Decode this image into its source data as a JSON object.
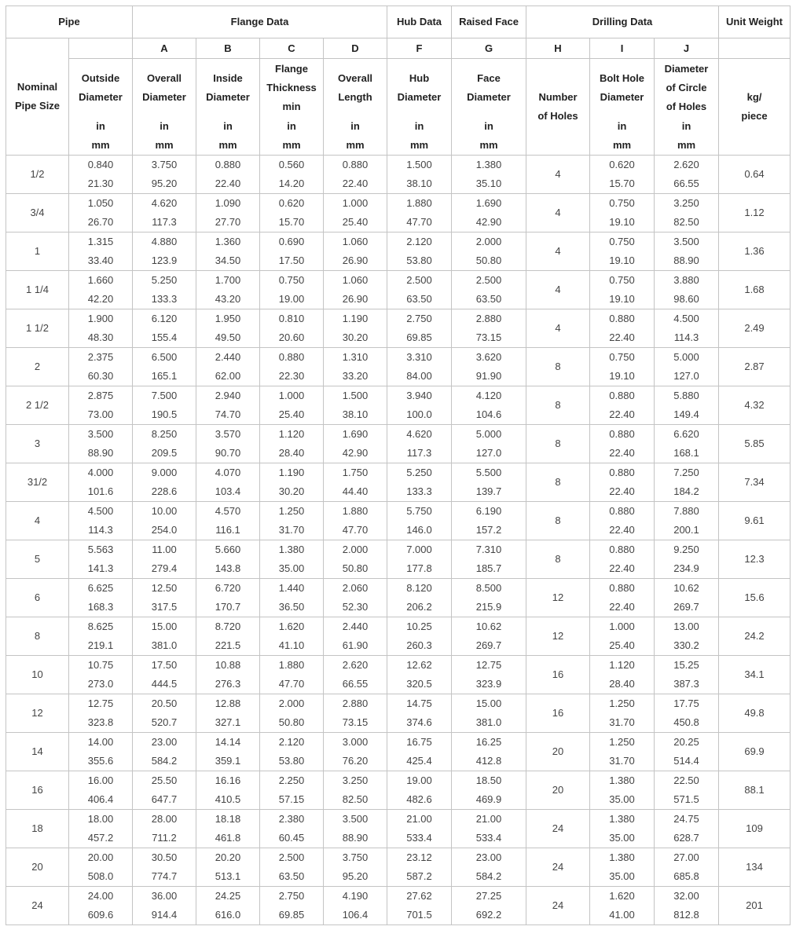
{
  "header": {
    "groups": [
      "Pipe",
      "Flange Data",
      "Hub Data",
      "Raised Face",
      "Drilling Data",
      "Unit Weight"
    ]
  },
  "columns": [
    {
      "label": [
        "Nominal",
        "Pipe Size"
      ]
    },
    {
      "label": [
        "Outside",
        "Diameter"
      ],
      "units": [
        "in",
        "mm"
      ]
    },
    {
      "letter": "A",
      "label": [
        "Overall",
        "Diameter"
      ],
      "units": [
        "in",
        "mm"
      ]
    },
    {
      "letter": "B",
      "label": [
        "Inside",
        "Diameter"
      ],
      "units": [
        "in",
        "mm"
      ]
    },
    {
      "letter": "C",
      "label": [
        "Flange",
        "Thickness",
        "min"
      ],
      "units": [
        "in",
        "mm"
      ]
    },
    {
      "letter": "D",
      "label": [
        "Overall",
        "Length"
      ],
      "units": [
        "in",
        "mm"
      ]
    },
    {
      "letter": "F",
      "label": [
        "Hub",
        "Diameter"
      ],
      "units": [
        "in",
        "mm"
      ]
    },
    {
      "letter": "G",
      "label": [
        "Face",
        "Diameter"
      ],
      "units": [
        "in",
        "mm"
      ]
    },
    {
      "letter": "H",
      "label": [
        "Number",
        "of Holes"
      ]
    },
    {
      "letter": "I",
      "label": [
        "Bolt Hole",
        "Diameter"
      ],
      "units": [
        "in",
        "mm"
      ]
    },
    {
      "letter": "J",
      "label": [
        "Diameter",
        "of Circle",
        "of Holes"
      ],
      "units": [
        "in",
        "mm"
      ]
    },
    {
      "label": [
        "kg/",
        "piece"
      ]
    }
  ],
  "rows": [
    [
      "1/2",
      [
        "0.840",
        "21.30"
      ],
      [
        "3.750",
        "95.20"
      ],
      [
        "0.880",
        "22.40"
      ],
      [
        "0.560",
        "14.20"
      ],
      [
        "0.880",
        "22.40"
      ],
      [
        "1.500",
        "38.10"
      ],
      [
        "1.380",
        "35.10"
      ],
      "4",
      [
        "0.620",
        "15.70"
      ],
      [
        "2.620",
        "66.55"
      ],
      "0.64"
    ],
    [
      "3/4",
      [
        "1.050",
        "26.70"
      ],
      [
        "4.620",
        "117.3"
      ],
      [
        "1.090",
        "27.70"
      ],
      [
        "0.620",
        "15.70"
      ],
      [
        "1.000",
        "25.40"
      ],
      [
        "1.880",
        "47.70"
      ],
      [
        "1.690",
        "42.90"
      ],
      "4",
      [
        "0.750",
        "19.10"
      ],
      [
        "3.250",
        "82.50"
      ],
      "1.12"
    ],
    [
      "1",
      [
        "1.315",
        "33.40"
      ],
      [
        "4.880",
        "123.9"
      ],
      [
        "1.360",
        "34.50"
      ],
      [
        "0.690",
        "17.50"
      ],
      [
        "1.060",
        "26.90"
      ],
      [
        "2.120",
        "53.80"
      ],
      [
        "2.000",
        "50.80"
      ],
      "4",
      [
        "0.750",
        "19.10"
      ],
      [
        "3.500",
        "88.90"
      ],
      "1.36"
    ],
    [
      "1 1/4",
      [
        "1.660",
        "42.20"
      ],
      [
        "5.250",
        "133.3"
      ],
      [
        "1.700",
        "43.20"
      ],
      [
        "0.750",
        "19.00"
      ],
      [
        "1.060",
        "26.90"
      ],
      [
        "2.500",
        "63.50"
      ],
      [
        "2.500",
        "63.50"
      ],
      "4",
      [
        "0.750",
        "19.10"
      ],
      [
        "3.880",
        "98.60"
      ],
      "1.68"
    ],
    [
      "1 1/2",
      [
        "1.900",
        "48.30"
      ],
      [
        "6.120",
        "155.4"
      ],
      [
        "1.950",
        "49.50"
      ],
      [
        "0.810",
        "20.60"
      ],
      [
        "1.190",
        "30.20"
      ],
      [
        "2.750",
        "69.85"
      ],
      [
        "2.880",
        "73.15"
      ],
      "4",
      [
        "0.880",
        "22.40"
      ],
      [
        "4.500",
        "114.3"
      ],
      "2.49"
    ],
    [
      "2",
      [
        "2.375",
        "60.30"
      ],
      [
        "6.500",
        "165.1"
      ],
      [
        "2.440",
        "62.00"
      ],
      [
        "0.880",
        "22.30"
      ],
      [
        "1.310",
        "33.20"
      ],
      [
        "3.310",
        "84.00"
      ],
      [
        "3.620",
        "91.90"
      ],
      "8",
      [
        "0.750",
        "19.10"
      ],
      [
        "5.000",
        "127.0"
      ],
      "2.87"
    ],
    [
      "2 1/2",
      [
        "2.875",
        "73.00"
      ],
      [
        "7.500",
        "190.5"
      ],
      [
        "2.940",
        "74.70"
      ],
      [
        "1.000",
        "25.40"
      ],
      [
        "1.500",
        "38.10"
      ],
      [
        "3.940",
        "100.0"
      ],
      [
        "4.120",
        "104.6"
      ],
      "8",
      [
        "0.880",
        "22.40"
      ],
      [
        "5.880",
        "149.4"
      ],
      "4.32"
    ],
    [
      "3",
      [
        "3.500",
        "88.90"
      ],
      [
        "8.250",
        "209.5"
      ],
      [
        "3.570",
        "90.70"
      ],
      [
        "1.120",
        "28.40"
      ],
      [
        "1.690",
        "42.90"
      ],
      [
        "4.620",
        "117.3"
      ],
      [
        "5.000",
        "127.0"
      ],
      "8",
      [
        "0.880",
        "22.40"
      ],
      [
        "6.620",
        "168.1"
      ],
      "5.85"
    ],
    [
      "31/2",
      [
        "4.000",
        "101.6"
      ],
      [
        "9.000",
        "228.6"
      ],
      [
        "4.070",
        "103.4"
      ],
      [
        "1.190",
        "30.20"
      ],
      [
        "1.750",
        "44.40"
      ],
      [
        "5.250",
        "133.3"
      ],
      [
        "5.500",
        "139.7"
      ],
      "8",
      [
        "0.880",
        "22.40"
      ],
      [
        "7.250",
        "184.2"
      ],
      "7.34"
    ],
    [
      "4",
      [
        "4.500",
        "114.3"
      ],
      [
        "10.00",
        "254.0"
      ],
      [
        "4.570",
        "116.1"
      ],
      [
        "1.250",
        "31.70"
      ],
      [
        "1.880",
        "47.70"
      ],
      [
        "5.750",
        "146.0"
      ],
      [
        "6.190",
        "157.2"
      ],
      "8",
      [
        "0.880",
        "22.40"
      ],
      [
        "7.880",
        "200.1"
      ],
      "9.61"
    ],
    [
      "5",
      [
        "5.563",
        "141.3"
      ],
      [
        "11.00",
        "279.4"
      ],
      [
        "5.660",
        "143.8"
      ],
      [
        "1.380",
        "35.00"
      ],
      [
        "2.000",
        "50.80"
      ],
      [
        "7.000",
        "177.8"
      ],
      [
        "7.310",
        "185.7"
      ],
      "8",
      [
        "0.880",
        "22.40"
      ],
      [
        "9.250",
        "234.9"
      ],
      "12.3"
    ],
    [
      "6",
      [
        "6.625",
        "168.3"
      ],
      [
        "12.50",
        "317.5"
      ],
      [
        "6.720",
        "170.7"
      ],
      [
        "1.440",
        "36.50"
      ],
      [
        "2.060",
        "52.30"
      ],
      [
        "8.120",
        "206.2"
      ],
      [
        "8.500",
        "215.9"
      ],
      "12",
      [
        "0.880",
        "22.40"
      ],
      [
        "10.62",
        "269.7"
      ],
      "15.6"
    ],
    [
      "8",
      [
        "8.625",
        "219.1"
      ],
      [
        "15.00",
        "381.0"
      ],
      [
        "8.720",
        "221.5"
      ],
      [
        "1.620",
        "41.10"
      ],
      [
        "2.440",
        "61.90"
      ],
      [
        "10.25",
        "260.3"
      ],
      [
        "10.62",
        "269.7"
      ],
      "12",
      [
        "1.000",
        "25.40"
      ],
      [
        "13.00",
        "330.2"
      ],
      "24.2"
    ],
    [
      "10",
      [
        "10.75",
        "273.0"
      ],
      [
        "17.50",
        "444.5"
      ],
      [
        "10.88",
        "276.3"
      ],
      [
        "1.880",
        "47.70"
      ],
      [
        "2.620",
        "66.55"
      ],
      [
        "12.62",
        "320.5"
      ],
      [
        "12.75",
        "323.9"
      ],
      "16",
      [
        "1.120",
        "28.40"
      ],
      [
        "15.25",
        "387.3"
      ],
      "34.1"
    ],
    [
      "12",
      [
        "12.75",
        "323.8"
      ],
      [
        "20.50",
        "520.7"
      ],
      [
        "12.88",
        "327.1"
      ],
      [
        "2.000",
        "50.80"
      ],
      [
        "2.880",
        "73.15"
      ],
      [
        "14.75",
        "374.6"
      ],
      [
        "15.00",
        "381.0"
      ],
      "16",
      [
        "1.250",
        "31.70"
      ],
      [
        "17.75",
        "450.8"
      ],
      "49.8"
    ],
    [
      "14",
      [
        "14.00",
        "355.6"
      ],
      [
        "23.00",
        "584.2"
      ],
      [
        "14.14",
        "359.1"
      ],
      [
        "2.120",
        "53.80"
      ],
      [
        "3.000",
        "76.20"
      ],
      [
        "16.75",
        "425.4"
      ],
      [
        "16.25",
        "412.8"
      ],
      "20",
      [
        "1.250",
        "31.70"
      ],
      [
        "20.25",
        "514.4"
      ],
      "69.9"
    ],
    [
      "16",
      [
        "16.00",
        "406.4"
      ],
      [
        "25.50",
        "647.7"
      ],
      [
        "16.16",
        "410.5"
      ],
      [
        "2.250",
        "57.15"
      ],
      [
        "3.250",
        "82.50"
      ],
      [
        "19.00",
        "482.6"
      ],
      [
        "18.50",
        "469.9"
      ],
      "20",
      [
        "1.380",
        "35.00"
      ],
      [
        "22.50",
        "571.5"
      ],
      "88.1"
    ],
    [
      "18",
      [
        "18.00",
        "457.2"
      ],
      [
        "28.00",
        "711.2"
      ],
      [
        "18.18",
        "461.8"
      ],
      [
        "2.380",
        "60.45"
      ],
      [
        "3.500",
        "88.90"
      ],
      [
        "21.00",
        "533.4"
      ],
      [
        "21.00",
        "533.4"
      ],
      "24",
      [
        "1.380",
        "35.00"
      ],
      [
        "24.75",
        "628.7"
      ],
      "109"
    ],
    [
      "20",
      [
        "20.00",
        "508.0"
      ],
      [
        "30.50",
        "774.7"
      ],
      [
        "20.20",
        "513.1"
      ],
      [
        "2.500",
        "63.50"
      ],
      [
        "3.750",
        "95.20"
      ],
      [
        "23.12",
        "587.2"
      ],
      [
        "23.00",
        "584.2"
      ],
      "24",
      [
        "1.380",
        "35.00"
      ],
      [
        "27.00",
        "685.8"
      ],
      "134"
    ],
    [
      "24",
      [
        "24.00",
        "609.6"
      ],
      [
        "36.00",
        "914.4"
      ],
      [
        "24.25",
        "616.0"
      ],
      [
        "2.750",
        "69.85"
      ],
      [
        "4.190",
        "106.4"
      ],
      [
        "27.62",
        "701.5"
      ],
      [
        "27.25",
        "692.2"
      ],
      "24",
      [
        "1.620",
        "41.00"
      ],
      [
        "32.00",
        "812.8"
      ],
      "201"
    ]
  ]
}
